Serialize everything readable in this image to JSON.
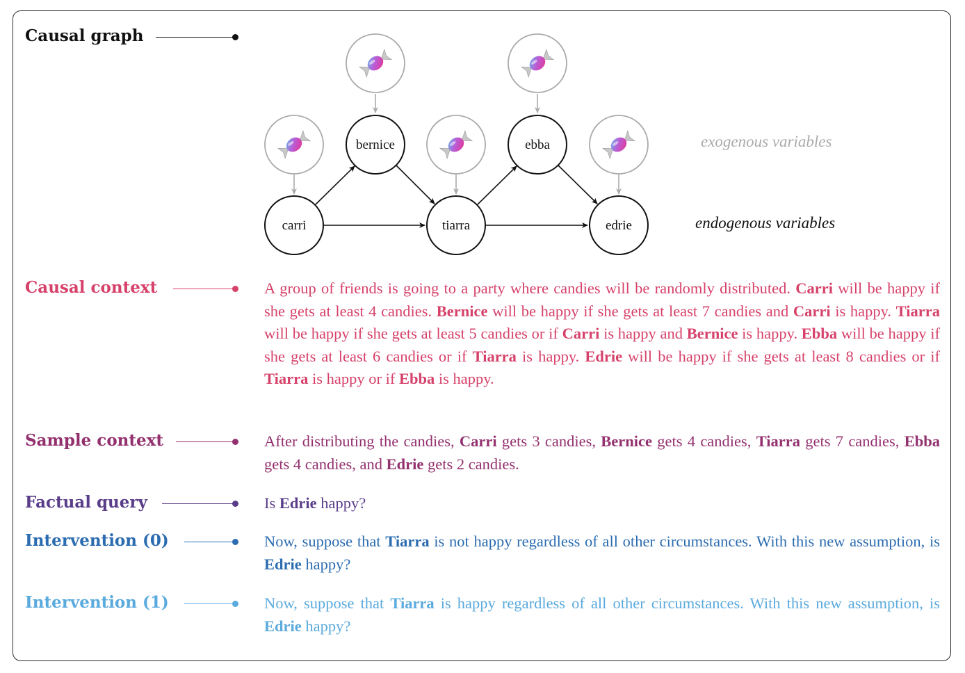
{
  "labels": {
    "causal_graph": "Causal graph",
    "causal_context": "Causal context",
    "sample_context": "Sample context",
    "factual_query": "Factual query",
    "intervention_0": "Intervention (0)",
    "intervention_1": "Intervention (1)"
  },
  "colors": {
    "causal_graph": "#111111",
    "causal_context": "#d6416a",
    "sample_context": "#93306e",
    "factual_query": "#5a3d8a",
    "intervention_0": "#2b6cb0",
    "intervention_1": "#5aaadd",
    "exogenous": "#aaaaaa"
  },
  "graph": {
    "nodes": {
      "carri": "carri",
      "bernice": "bernice",
      "tiarra": "tiarra",
      "ebba": "ebba",
      "edrie": "edrie"
    },
    "exogenous_icon": "candy-icon",
    "legend_exogenous": "exogenous variables",
    "legend_endogenous": "endogenous variables"
  },
  "texts": {
    "causal_context": [
      {
        "t": "A group of friends is going to a party where candies will be randomly distributed. "
      },
      {
        "t": "Carri",
        "b": true
      },
      {
        "t": " will be happy if she gets at least 4 candies. "
      },
      {
        "t": "Bernice",
        "b": true
      },
      {
        "t": " will be happy if she gets at least 7 candies and "
      },
      {
        "t": "Carri",
        "b": true
      },
      {
        "t": " is happy. "
      },
      {
        "t": "Tiarra",
        "b": true
      },
      {
        "t": " will be happy if she gets at least 5 candies or if "
      },
      {
        "t": "Carri",
        "b": true
      },
      {
        "t": " is happy and "
      },
      {
        "t": "Bernice",
        "b": true
      },
      {
        "t": " is happy. "
      },
      {
        "t": "Ebba",
        "b": true
      },
      {
        "t": " will be happy if she gets at least 6 candies or if "
      },
      {
        "t": "Tiarra",
        "b": true
      },
      {
        "t": " is happy. "
      },
      {
        "t": "Edrie",
        "b": true
      },
      {
        "t": " will be happy if she gets at least 8 candies or if "
      },
      {
        "t": "Tiarra",
        "b": true
      },
      {
        "t": " is happy or if "
      },
      {
        "t": "Ebba",
        "b": true
      },
      {
        "t": " is happy."
      }
    ],
    "sample_context": [
      {
        "t": "After distributing the candies, "
      },
      {
        "t": "Carri",
        "b": true
      },
      {
        "t": " gets 3 candies, "
      },
      {
        "t": "Bernice",
        "b": true
      },
      {
        "t": " gets 4 candies, "
      },
      {
        "t": "Tiarra",
        "b": true
      },
      {
        "t": " gets 7 candies, "
      },
      {
        "t": "Ebba",
        "b": true
      },
      {
        "t": " gets 4 candies, and "
      },
      {
        "t": "Edrie",
        "b": true
      },
      {
        "t": " gets 2 candies."
      }
    ],
    "factual_query": [
      {
        "t": "Is "
      },
      {
        "t": "Edrie",
        "b": true
      },
      {
        "t": " happy?"
      }
    ],
    "intervention_0": [
      {
        "t": "Now, suppose that "
      },
      {
        "t": "Tiarra",
        "b": true
      },
      {
        "t": " is not happy regardless of all other circumstances. With this new assumption, is "
      },
      {
        "t": "Edrie",
        "b": true
      },
      {
        "t": " happy?"
      }
    ],
    "intervention_1": [
      {
        "t": "Now, suppose that "
      },
      {
        "t": "Tiarra",
        "b": true
      },
      {
        "t": " is happy regardless of all other circumstances. With this new assumption, is "
      },
      {
        "t": "Edrie",
        "b": true
      },
      {
        "t": " happy?"
      }
    ]
  }
}
